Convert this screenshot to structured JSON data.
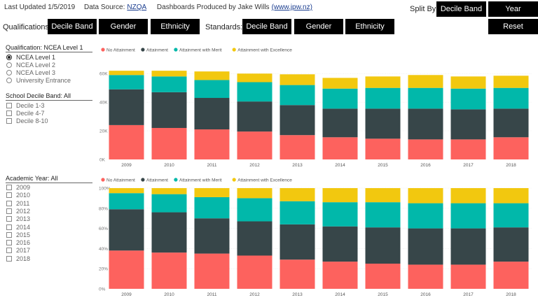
{
  "header": {
    "last_updated": "Last Updated 1/5/2019",
    "data_source_label": "Data Source:",
    "data_source_link": "NZQA",
    "produced_by": "Dashboards Produced by Jake Wills",
    "produced_link": "(www.jpw.nz)",
    "split_by_label": "Split By:",
    "split_decile": "Decile Band",
    "split_year": "Year",
    "reset": "Reset"
  },
  "filters": {
    "qualifications_label": "Qualifications:",
    "standards_label": "Standards:",
    "qual_buttons": [
      "Decile Band",
      "Gender",
      "Ethnicity"
    ],
    "std_buttons": [
      "Decile Band",
      "Gender",
      "Ethnicity"
    ]
  },
  "slicers": {
    "qualification_title": "Qualification: NCEA Level 1",
    "qualification_options": [
      "NCEA Level 1",
      "NCEA Level 2",
      "NCEA Level 3",
      "University Entrance"
    ],
    "qualification_selected": 0,
    "decile_title": "School Decile Band: All",
    "decile_options": [
      "Decile 1-3",
      "Decile 4-7",
      "Decile 8-10"
    ],
    "year_title": "Academic Year: All",
    "year_options": [
      "2009",
      "2010",
      "2011",
      "2012",
      "2013",
      "2014",
      "2015",
      "2016",
      "2017",
      "2018"
    ]
  },
  "colors": {
    "no_attainment": "#fd625e",
    "attainment": "#374649",
    "merit": "#01b8aa",
    "excellence": "#f2c80f"
  },
  "chart_data": [
    {
      "type": "bar",
      "stacked": true,
      "categories": [
        "2009",
        "2010",
        "2011",
        "2012",
        "2013",
        "2014",
        "2015",
        "2016",
        "2017",
        "2018"
      ],
      "yticks": [
        "0K",
        "20K",
        "40K",
        "60K"
      ],
      "ylim": [
        0,
        65000
      ],
      "legend": "top-left",
      "series": [
        {
          "name": "No Attainment",
          "values": [
            24000,
            22000,
            21000,
            19500,
            17000,
            15500,
            14500,
            14000,
            14000,
            15500
          ]
        },
        {
          "name": "Attainment",
          "values": [
            25000,
            25000,
            22000,
            21000,
            21000,
            20000,
            21000,
            21500,
            21000,
            20000
          ]
        },
        {
          "name": "Attainment with Merit",
          "values": [
            10000,
            11000,
            12500,
            13500,
            14000,
            14000,
            14500,
            14500,
            14500,
            14500
          ]
        },
        {
          "name": "Attainment with Excellence",
          "values": [
            3000,
            4000,
            6000,
            6000,
            7500,
            7500,
            8000,
            9000,
            8500,
            8500
          ]
        }
      ]
    },
    {
      "type": "bar",
      "stacked": true,
      "percent": true,
      "categories": [
        "2009",
        "2010",
        "2011",
        "2012",
        "2013",
        "2014",
        "2015",
        "2016",
        "2017",
        "2018"
      ],
      "yticks": [
        "0%",
        "20%",
        "40%",
        "60%",
        "80%",
        "100%"
      ],
      "ylim": [
        0,
        100
      ],
      "legend": "top-left",
      "series": [
        {
          "name": "No Attainment",
          "values": [
            38,
            36,
            35,
            33,
            29,
            27,
            25,
            24,
            24,
            27
          ]
        },
        {
          "name": "Attainment",
          "values": [
            41,
            40,
            35,
            34,
            35,
            35,
            36,
            36,
            36,
            34
          ]
        },
        {
          "name": "Attainment with Merit",
          "values": [
            16,
            18,
            21,
            23,
            23,
            24,
            25,
            25,
            25,
            24
          ]
        },
        {
          "name": "Attainment with Excellence",
          "values": [
            5,
            6,
            9,
            10,
            13,
            14,
            14,
            15,
            15,
            15
          ]
        }
      ]
    }
  ]
}
